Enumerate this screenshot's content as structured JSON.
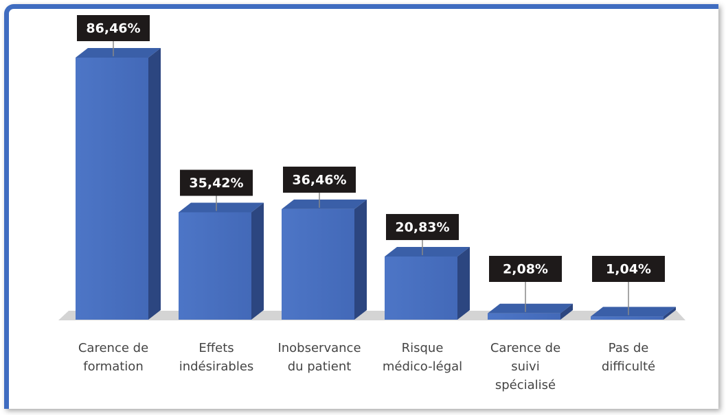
{
  "chart_data": {
    "type": "bar",
    "categories": [
      "Carence de formation",
      "Effets indésirables",
      "Inobservance du patient",
      "Risque médico-légal",
      "Carence de suivi spécialisé",
      "Pas de difficulté"
    ],
    "values": [
      86.46,
      35.42,
      36.46,
      20.83,
      2.08,
      1.04
    ],
    "value_labels": [
      "86,46%",
      "35,42%",
      "36,46%",
      "20,83%",
      "2,08%",
      "1,04%"
    ],
    "color": "#4a72c4"
  }
}
